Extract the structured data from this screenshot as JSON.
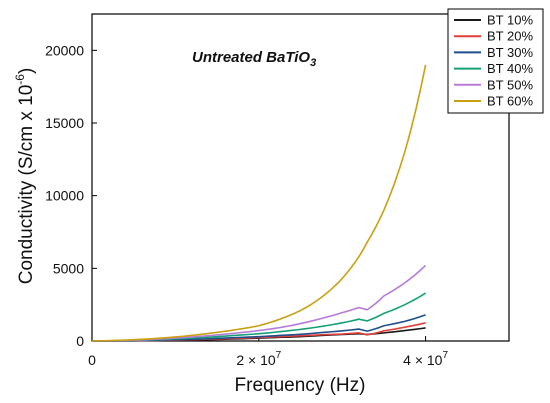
{
  "chart_data": {
    "type": "line",
    "annotation": {
      "main": "Untreated BaTiO",
      "sub": "3"
    },
    "xlabel": "Frequency (Hz)",
    "ylabel": {
      "main": "Conductivity (S/cm x 10",
      "sup": "-6",
      "close": ")"
    },
    "xlim": [
      0,
      50000000
    ],
    "ylim": [
      0,
      22500
    ],
    "x_ticks": [
      {
        "value": 0,
        "mantissa": "0",
        "exp": ""
      },
      {
        "value": 20000000,
        "mantissa": "2 × 10",
        "exp": "7"
      },
      {
        "value": 40000000,
        "mantissa": "4 × 10",
        "exp": "7"
      }
    ],
    "y_ticks": [
      {
        "value": 0,
        "label": "0"
      },
      {
        "value": 5000,
        "label": "5000"
      },
      {
        "value": 10000,
        "label": "10000"
      },
      {
        "value": 15000,
        "label": "15000"
      },
      {
        "value": 20000,
        "label": "20000"
      }
    ],
    "legend_position": "top-right",
    "x": [
      0,
      2500000,
      5000000,
      7500000,
      10000000,
      12500000,
      15000000,
      17500000,
      20000000,
      22500000,
      25000000,
      27500000,
      30000000,
      32000000,
      33000000,
      35000000,
      37500000,
      40000000
    ],
    "series": [
      {
        "name": "BT 10%",
        "color": "#1a1a1a",
        "values": [
          0,
          5,
          15,
          30,
          50,
          80,
          110,
          150,
          200,
          250,
          300,
          380,
          450,
          500,
          450,
          560,
          720,
          900
        ]
      },
      {
        "name": "BT 20%",
        "color": "#e0403a",
        "values": [
          0,
          8,
          20,
          40,
          65,
          100,
          140,
          190,
          240,
          300,
          360,
          430,
          480,
          560,
          420,
          700,
          950,
          1250
        ]
      },
      {
        "name": "BT 30%",
        "color": "#1f4e8c",
        "values": [
          0,
          10,
          30,
          55,
          90,
          130,
          180,
          240,
          300,
          380,
          460,
          580,
          700,
          820,
          680,
          1050,
          1350,
          1800
        ]
      },
      {
        "name": "BT 40%",
        "color": "#14a077",
        "values": [
          0,
          15,
          45,
          90,
          150,
          220,
          300,
          400,
          500,
          640,
          800,
          1000,
          1250,
          1500,
          1380,
          1900,
          2500,
          3300
        ]
      },
      {
        "name": "BT 50%",
        "color": "#b57bd6",
        "values": [
          0,
          20,
          60,
          120,
          200,
          300,
          420,
          560,
          720,
          920,
          1200,
          1550,
          1950,
          2300,
          2150,
          3100,
          4000,
          5200
        ]
      },
      {
        "name": "BT 60%",
        "color": "#c9a010",
        "values": [
          0,
          35,
          90,
          170,
          280,
          420,
          600,
          800,
          1050,
          1500,
          2100,
          3000,
          4300,
          5800,
          6800,
          9000,
          13000,
          19000
        ]
      }
    ]
  }
}
